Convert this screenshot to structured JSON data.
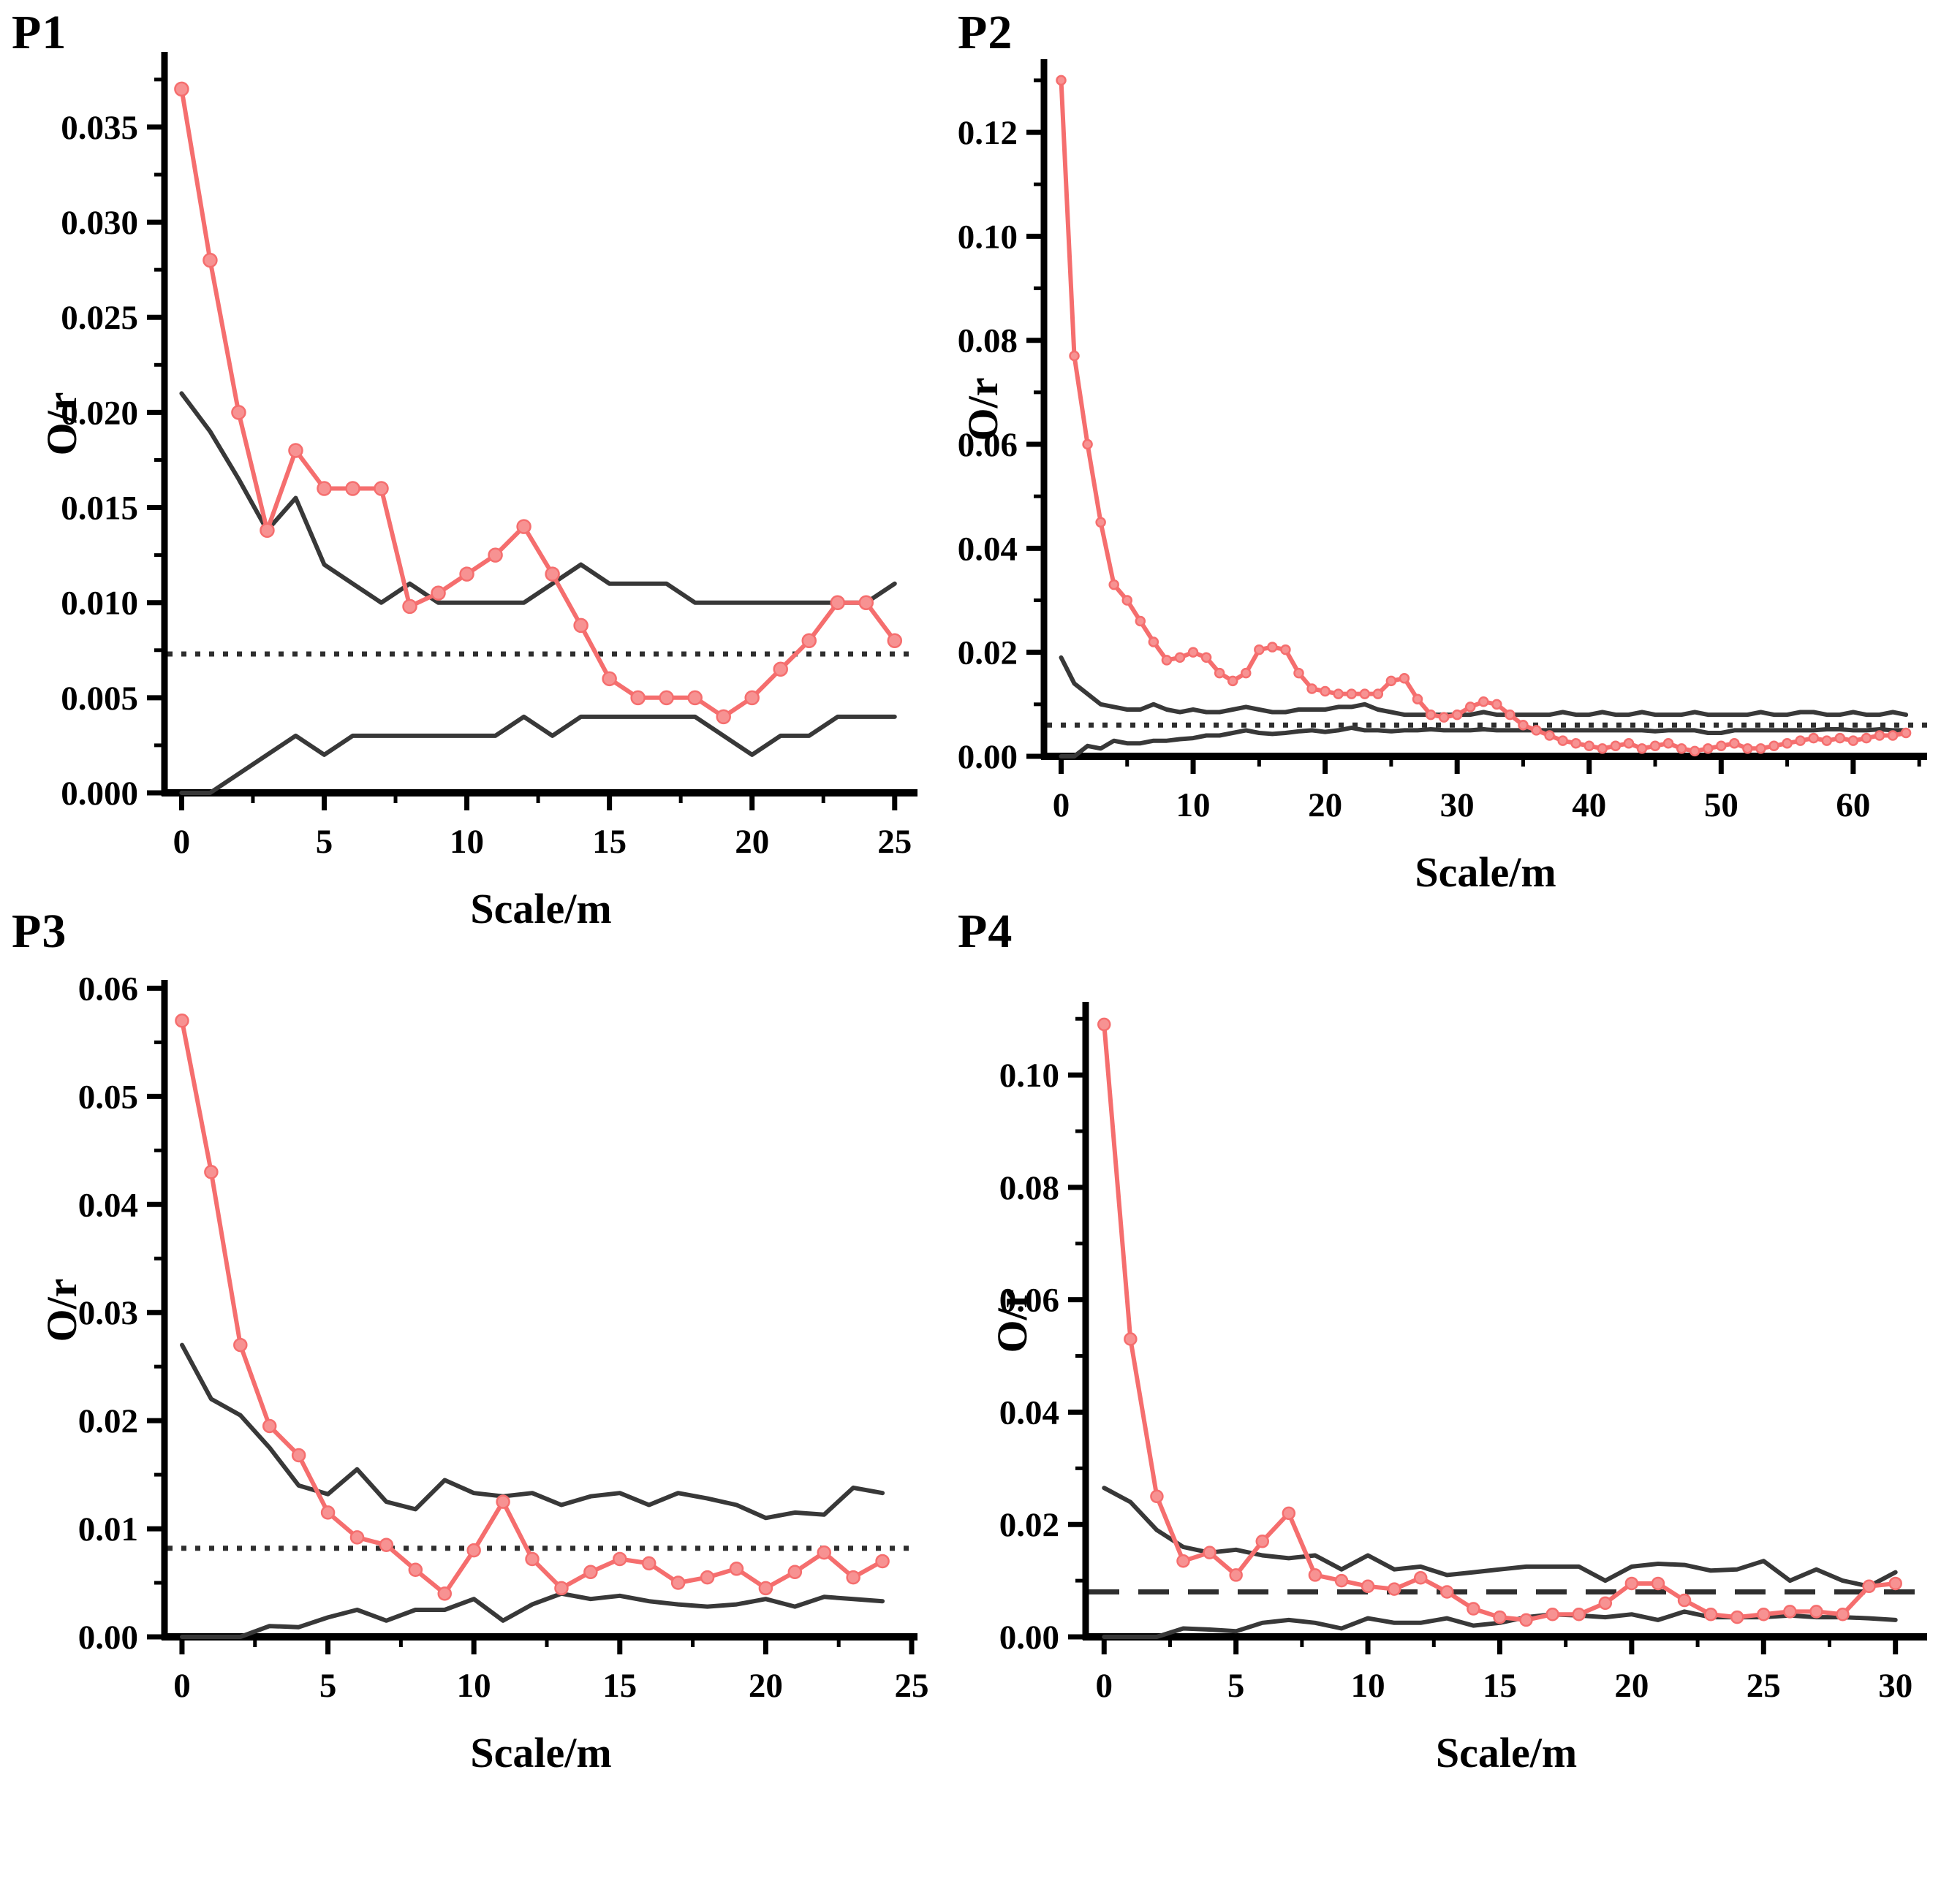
{
  "page": {
    "background": "#ffffff"
  },
  "colors": {
    "series_red": "#f56e6e",
    "marker_fill": "#f79292",
    "envelope_black": "#383838",
    "axis_black": "#000000",
    "reference_line": "#2e2e2e"
  },
  "chart_data": [
    {
      "id": "p1",
      "type": "line",
      "title": "P1",
      "xlabel": "Scale/m",
      "ylabel": "O/r",
      "xlim": [
        -0.6,
        25.8
      ],
      "ylim": [
        0,
        0.0388
      ],
      "x_ticks": [
        {
          "v": 0,
          "label": "0"
        },
        {
          "v": 5,
          "label": "5"
        },
        {
          "v": 10,
          "label": "10"
        },
        {
          "v": 15,
          "label": "15"
        },
        {
          "v": 20,
          "label": "20"
        },
        {
          "v": 25,
          "label": "25"
        }
      ],
      "y_ticks": [
        {
          "v": 0.0,
          "label": "0.000"
        },
        {
          "v": 0.005,
          "label": "0.005"
        },
        {
          "v": 0.01,
          "label": "0.010"
        },
        {
          "v": 0.015,
          "label": "0.015"
        },
        {
          "v": 0.02,
          "label": "0.020"
        },
        {
          "v": 0.025,
          "label": "0.025"
        },
        {
          "v": 0.03,
          "label": "0.030"
        },
        {
          "v": 0.035,
          "label": "0.035"
        }
      ],
      "reference_line": {
        "y": 0.0073,
        "style": "dotted"
      },
      "x_start": 0,
      "x_step": 1,
      "series": [
        {
          "name": "observed-ratio",
          "role": "data",
          "marker": true,
          "values": [
            0.037,
            0.028,
            0.02,
            0.0138,
            0.018,
            0.016,
            0.016,
            0.016,
            0.0098,
            0.0105,
            0.0115,
            0.0125,
            0.014,
            0.0115,
            0.0088,
            0.006,
            0.005,
            0.005,
            0.005,
            0.004,
            0.005,
            0.0065,
            0.008,
            0.01,
            0.01,
            0.008
          ]
        },
        {
          "name": "envelope-upper",
          "role": "envelope",
          "marker": false,
          "values": [
            0.021,
            0.019,
            0.0165,
            0.0138,
            0.0155,
            0.012,
            0.011,
            0.01,
            0.011,
            0.01,
            0.01,
            0.01,
            0.01,
            0.011,
            0.012,
            0.011,
            0.011,
            0.011,
            0.01,
            0.01,
            0.01,
            0.01,
            0.01,
            0.01,
            0.01,
            0.011
          ]
        },
        {
          "name": "envelope-lower",
          "role": "envelope",
          "marker": false,
          "values": [
            0.0,
            0.0,
            0.001,
            0.002,
            0.003,
            0.002,
            0.003,
            0.003,
            0.003,
            0.003,
            0.003,
            0.003,
            0.004,
            0.003,
            0.004,
            0.004,
            0.004,
            0.004,
            0.004,
            0.003,
            0.002,
            0.003,
            0.003,
            0.004,
            0.004,
            0.004
          ]
        }
      ]
    },
    {
      "id": "p2",
      "type": "line",
      "title": "P2",
      "xlabel": "Scale/m",
      "ylabel": "O/r",
      "xlim": [
        -1.3,
        65.6
      ],
      "ylim": [
        0,
        0.1335
      ],
      "x_ticks": [
        {
          "v": 0,
          "label": "0"
        },
        {
          "v": 10,
          "label": "10"
        },
        {
          "v": 20,
          "label": "20"
        },
        {
          "v": 30,
          "label": "30"
        },
        {
          "v": 40,
          "label": "40"
        },
        {
          "v": 50,
          "label": "50"
        },
        {
          "v": 60,
          "label": "60"
        }
      ],
      "y_ticks": [
        {
          "v": 0.0,
          "label": "0.00"
        },
        {
          "v": 0.02,
          "label": "0.02"
        },
        {
          "v": 0.04,
          "label": "0.04"
        },
        {
          "v": 0.06,
          "label": "0.06"
        },
        {
          "v": 0.08,
          "label": "0.08"
        },
        {
          "v": 0.1,
          "label": "0.10"
        },
        {
          "v": 0.12,
          "label": "0.12"
        }
      ],
      "reference_line": {
        "y": 0.006,
        "style": "dotted"
      },
      "x_start": 0,
      "x_step": 1,
      "series": [
        {
          "name": "observed-ratio",
          "role": "data",
          "marker": true,
          "values": [
            0.13,
            0.077,
            0.06,
            0.045,
            0.033,
            0.03,
            0.026,
            0.022,
            0.0185,
            0.019,
            0.02,
            0.019,
            0.016,
            0.0145,
            0.016,
            0.0205,
            0.021,
            0.0205,
            0.016,
            0.013,
            0.0125,
            0.012,
            0.012,
            0.012,
            0.012,
            0.0145,
            0.015,
            0.011,
            0.008,
            0.0075,
            0.008,
            0.0095,
            0.0105,
            0.01,
            0.008,
            0.006,
            0.005,
            0.004,
            0.003,
            0.0025,
            0.002,
            0.0015,
            0.002,
            0.0025,
            0.0015,
            0.002,
            0.0025,
            0.0015,
            0.001,
            0.0015,
            0.002,
            0.0025,
            0.0015,
            0.0015,
            0.002,
            0.0025,
            0.003,
            0.0035,
            0.003,
            0.0035,
            0.003,
            0.0035,
            0.004,
            0.004,
            0.0045
          ]
        },
        {
          "name": "envelope-upper",
          "role": "envelope",
          "marker": false,
          "values": [
            0.019,
            0.014,
            0.012,
            0.01,
            0.0095,
            0.009,
            0.009,
            0.01,
            0.009,
            0.0085,
            0.009,
            0.0085,
            0.0085,
            0.009,
            0.0095,
            0.009,
            0.0085,
            0.0085,
            0.009,
            0.009,
            0.009,
            0.0095,
            0.0095,
            0.01,
            0.009,
            0.0085,
            0.008,
            0.008,
            0.008,
            0.008,
            0.008,
            0.008,
            0.0085,
            0.008,
            0.008,
            0.008,
            0.008,
            0.008,
            0.0085,
            0.008,
            0.008,
            0.0085,
            0.008,
            0.008,
            0.0085,
            0.008,
            0.008,
            0.008,
            0.0085,
            0.008,
            0.008,
            0.008,
            0.008,
            0.0085,
            0.008,
            0.008,
            0.0085,
            0.0085,
            0.008,
            0.008,
            0.0085,
            0.008,
            0.008,
            0.0085,
            0.008
          ]
        },
        {
          "name": "envelope-lower",
          "role": "envelope",
          "marker": false,
          "values": [
            0.0,
            0.0,
            0.002,
            0.0015,
            0.003,
            0.0025,
            0.0025,
            0.003,
            0.003,
            0.0033,
            0.0035,
            0.004,
            0.004,
            0.0045,
            0.005,
            0.0045,
            0.0043,
            0.0045,
            0.0048,
            0.005,
            0.0047,
            0.005,
            0.0055,
            0.005,
            0.005,
            0.0048,
            0.005,
            0.005,
            0.0052,
            0.005,
            0.005,
            0.005,
            0.0052,
            0.005,
            0.005,
            0.005,
            0.005,
            0.005,
            0.005,
            0.005,
            0.005,
            0.005,
            0.005,
            0.005,
            0.005,
            0.0048,
            0.005,
            0.005,
            0.005,
            0.0045,
            0.0045,
            0.005,
            0.005,
            0.005,
            0.005,
            0.005,
            0.005,
            0.005,
            0.0052,
            0.0052,
            0.005,
            0.005,
            0.0052,
            0.005,
            0.005
          ]
        }
      ]
    },
    {
      "id": "p3",
      "type": "line",
      "title": "P3",
      "xlabel": "Scale/m",
      "ylabel": "O/r",
      "xlim": [
        -0.6,
        25.2
      ],
      "ylim": [
        0,
        0.0605
      ],
      "x_ticks": [
        {
          "v": 0,
          "label": "0"
        },
        {
          "v": 5,
          "label": "5"
        },
        {
          "v": 10,
          "label": "10"
        },
        {
          "v": 15,
          "label": "15"
        },
        {
          "v": 20,
          "label": "20"
        },
        {
          "v": 25,
          "label": "25"
        }
      ],
      "y_ticks": [
        {
          "v": 0.0,
          "label": "0.00"
        },
        {
          "v": 0.01,
          "label": "0.01"
        },
        {
          "v": 0.02,
          "label": "0.02"
        },
        {
          "v": 0.03,
          "label": "0.03"
        },
        {
          "v": 0.04,
          "label": "0.04"
        },
        {
          "v": 0.05,
          "label": "0.05"
        },
        {
          "v": 0.06,
          "label": "0.06"
        }
      ],
      "reference_line": {
        "y": 0.0082,
        "style": "dotted"
      },
      "x_start": 0,
      "x_step": 1,
      "series": [
        {
          "name": "observed-ratio",
          "role": "data",
          "marker": true,
          "values": [
            0.057,
            0.043,
            0.027,
            0.0195,
            0.0168,
            0.0115,
            0.0092,
            0.0085,
            0.0062,
            0.004,
            0.008,
            0.0125,
            0.0072,
            0.0045,
            0.006,
            0.0072,
            0.0068,
            0.005,
            0.0055,
            0.0063,
            0.0045,
            0.006,
            0.0078,
            0.0055,
            0.007
          ]
        },
        {
          "name": "envelope-upper",
          "role": "envelope",
          "marker": false,
          "values": [
            0.027,
            0.022,
            0.0205,
            0.0175,
            0.014,
            0.0132,
            0.0155,
            0.0125,
            0.0118,
            0.0145,
            0.0133,
            0.013,
            0.0133,
            0.0122,
            0.013,
            0.0133,
            0.0122,
            0.0133,
            0.0128,
            0.0122,
            0.011,
            0.0115,
            0.0113,
            0.0138,
            0.0133
          ]
        },
        {
          "name": "envelope-lower",
          "role": "envelope",
          "marker": false,
          "values": [
            0.0,
            0.0,
            0.0,
            0.001,
            0.0009,
            0.0018,
            0.0025,
            0.0015,
            0.0025,
            0.0025,
            0.0035,
            0.0015,
            0.003,
            0.004,
            0.0035,
            0.0038,
            0.0033,
            0.003,
            0.0028,
            0.003,
            0.0035,
            0.0028,
            0.0037,
            0.0035,
            0.0033
          ]
        }
      ]
    },
    {
      "id": "p4",
      "type": "line",
      "title": "P4",
      "xlabel": "Scale/m",
      "ylabel": "O/r",
      "xlim": [
        -0.7,
        31.2
      ],
      "ylim": [
        0,
        0.1125
      ],
      "x_ticks": [
        {
          "v": 0,
          "label": "0"
        },
        {
          "v": 5,
          "label": "5"
        },
        {
          "v": 10,
          "label": "10"
        },
        {
          "v": 15,
          "label": "15"
        },
        {
          "v": 20,
          "label": "20"
        },
        {
          "v": 25,
          "label": "25"
        },
        {
          "v": 30,
          "label": "30"
        }
      ],
      "y_ticks": [
        {
          "v": 0.0,
          "label": "0.00"
        },
        {
          "v": 0.02,
          "label": "0.02"
        },
        {
          "v": 0.04,
          "label": "0.04"
        },
        {
          "v": 0.06,
          "label": "0.06"
        },
        {
          "v": 0.08,
          "label": "0.08"
        },
        {
          "v": 0.1,
          "label": "0.10"
        }
      ],
      "reference_line": {
        "y": 0.008,
        "style": "dashed"
      },
      "x_start": 0,
      "x_step": 1,
      "series": [
        {
          "name": "observed-ratio",
          "role": "data",
          "marker": true,
          "values": [
            0.109,
            0.053,
            0.025,
            0.0135,
            0.015,
            0.011,
            0.017,
            0.022,
            0.011,
            0.01,
            0.009,
            0.0085,
            0.0105,
            0.008,
            0.005,
            0.0035,
            0.003,
            0.004,
            0.004,
            0.006,
            0.0095,
            0.0095,
            0.0065,
            0.004,
            0.0035,
            0.004,
            0.0045,
            0.0045,
            0.004,
            0.009,
            0.0095
          ]
        },
        {
          "name": "envelope-upper",
          "role": "envelope",
          "marker": false,
          "values": [
            0.0265,
            0.024,
            0.019,
            0.016,
            0.015,
            0.0155,
            0.0145,
            0.014,
            0.0145,
            0.012,
            0.0145,
            0.012,
            0.0125,
            0.011,
            0.0115,
            0.012,
            0.0125,
            0.0125,
            0.0125,
            0.01,
            0.0125,
            0.013,
            0.0128,
            0.0118,
            0.012,
            0.0135,
            0.01,
            0.012,
            0.01,
            0.009,
            0.0115
          ]
        },
        {
          "name": "envelope-lower",
          "role": "envelope",
          "marker": false,
          "values": [
            0.0,
            0.0,
            0.0,
            0.0015,
            0.0013,
            0.001,
            0.0025,
            0.003,
            0.0025,
            0.0015,
            0.0033,
            0.0025,
            0.0025,
            0.0033,
            0.002,
            0.0025,
            0.0035,
            0.004,
            0.0038,
            0.0035,
            0.004,
            0.003,
            0.0045,
            0.0035,
            0.0035,
            0.0035,
            0.0038,
            0.0035,
            0.0035,
            0.0033,
            0.003
          ]
        }
      ]
    }
  ]
}
